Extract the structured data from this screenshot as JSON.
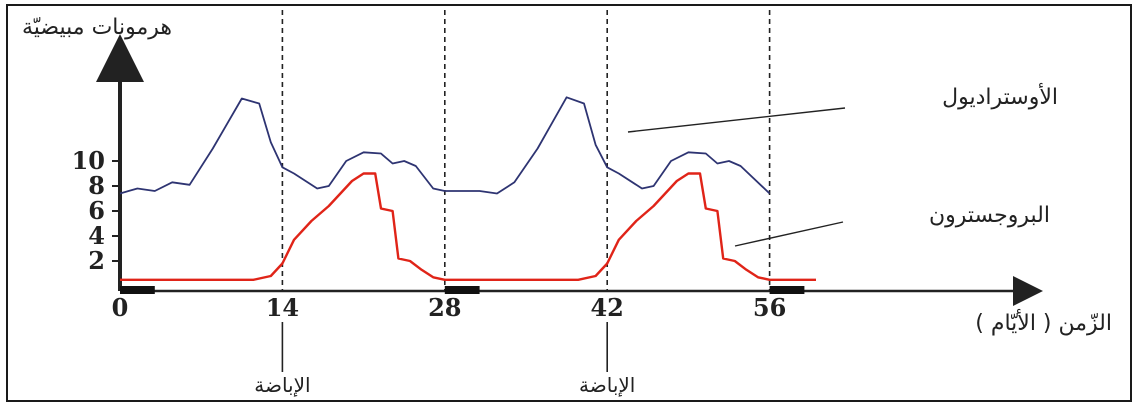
{
  "chart_data": {
    "type": "line",
    "ylabel": "هرمونات مبيضيّة",
    "xlabel": "الزّمن ( الأيّام )",
    "x_ticks": [
      "0",
      "14",
      "28",
      "42",
      "56"
    ],
    "y_ticks": [
      "2",
      "4",
      "6",
      "8",
      "10"
    ],
    "ovulation_label": "الإباضة",
    "ovulation_days": [
      14,
      42
    ],
    "cycle_boundaries": [
      14,
      28,
      42,
      56
    ],
    "xlim": [
      0,
      60
    ],
    "ylim": [
      0,
      16
    ],
    "series": [
      {
        "name": "الأوستراديول",
        "color": "#2e3472",
        "points": [
          [
            0,
            7.4
          ],
          [
            1.5,
            7.8
          ],
          [
            3,
            7.6
          ],
          [
            4.5,
            8.3
          ],
          [
            6,
            8.1
          ],
          [
            8,
            11
          ],
          [
            10.5,
            15
          ],
          [
            12,
            14.6
          ],
          [
            13,
            11.5
          ],
          [
            14,
            9.5
          ],
          [
            15,
            9
          ],
          [
            17,
            7.8
          ],
          [
            18,
            8
          ],
          [
            19.5,
            10
          ],
          [
            21,
            10.7
          ],
          [
            22.5,
            10.6
          ],
          [
            23.5,
            9.8
          ],
          [
            24.5,
            10
          ],
          [
            25.5,
            9.6
          ],
          [
            27,
            7.8
          ],
          [
            28,
            7.6
          ],
          [
            29,
            7.6
          ],
          [
            31,
            7.6
          ],
          [
            32.5,
            7.4
          ],
          [
            34,
            8.3
          ],
          [
            36,
            11
          ],
          [
            38.5,
            15.1
          ],
          [
            40,
            14.6
          ],
          [
            41,
            11.3
          ],
          [
            42,
            9.5
          ],
          [
            43,
            9
          ],
          [
            45,
            7.8
          ],
          [
            46,
            8
          ],
          [
            47.5,
            10
          ],
          [
            49,
            10.7
          ],
          [
            50.5,
            10.6
          ],
          [
            51.5,
            9.8
          ],
          [
            52.5,
            10
          ],
          [
            53.5,
            9.6
          ],
          [
            56,
            7.4
          ]
        ]
      },
      {
        "name": "البروجسترون",
        "color": "#e02418",
        "points": [
          [
            0,
            0.5
          ],
          [
            11.5,
            0.5
          ],
          [
            13,
            0.8
          ],
          [
            14,
            1.8
          ],
          [
            15,
            3.7
          ],
          [
            16.5,
            5.2
          ],
          [
            18,
            6.4
          ],
          [
            19,
            7.4
          ],
          [
            20,
            8.4
          ],
          [
            21,
            9
          ],
          [
            22,
            9
          ],
          [
            22.5,
            6.2
          ],
          [
            23.5,
            6
          ],
          [
            24,
            2.2
          ],
          [
            25,
            2
          ],
          [
            26,
            1.3
          ],
          [
            27,
            0.7
          ],
          [
            28,
            0.5
          ],
          [
            39.5,
            0.5
          ],
          [
            41,
            0.8
          ],
          [
            42,
            1.8
          ],
          [
            43,
            3.7
          ],
          [
            44.5,
            5.2
          ],
          [
            46,
            6.4
          ],
          [
            47,
            7.4
          ],
          [
            48,
            8.4
          ],
          [
            49,
            9
          ],
          [
            50,
            9
          ],
          [
            50.5,
            6.2
          ],
          [
            51.5,
            6
          ],
          [
            52,
            2.2
          ],
          [
            53,
            2
          ],
          [
            54,
            1.3
          ],
          [
            55,
            0.7
          ],
          [
            56,
            0.5
          ],
          [
            60,
            0.5
          ]
        ]
      }
    ],
    "menstruation_bars": [
      [
        0,
        3
      ],
      [
        28,
        31
      ],
      [
        56,
        59
      ]
    ]
  }
}
